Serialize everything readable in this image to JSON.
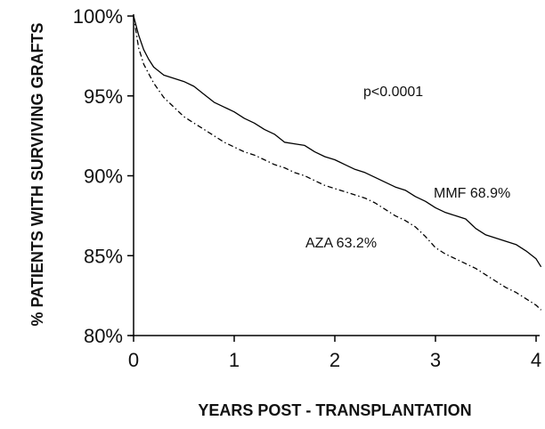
{
  "chart_data": {
    "type": "line",
    "xlabel": "YEARS POST - TRANSPLANTATION",
    "ylabel": "% PATIENTS WITH SURVIVING GRAFTS",
    "xlim": [
      0,
      4
    ],
    "ylim": [
      80,
      100
    ],
    "x_ticks": [
      "0",
      "1",
      "2",
      "3",
      "4"
    ],
    "y_ticks": [
      "80%",
      "85%",
      "90%",
      "95%",
      "100%"
    ],
    "grid": false,
    "legend": "none",
    "annotations": {
      "pvalue": "p<0.0001",
      "mmf_label": "MMF 68.9%",
      "aza_label": "AZA 63.2%"
    },
    "series": [
      {
        "name": "MMF",
        "line_style": "solid",
        "color": "#000000",
        "x": [
          0,
          0.05,
          0.1,
          0.15,
          0.2,
          0.3,
          0.4,
          0.5,
          0.6,
          0.7,
          0.8,
          0.9,
          1.0,
          1.1,
          1.2,
          1.3,
          1.4,
          1.5,
          1.6,
          1.7,
          1.8,
          1.9,
          2.0,
          2.1,
          2.2,
          2.3,
          2.4,
          2.5,
          2.6,
          2.7,
          2.8,
          2.9,
          3.0,
          3.1,
          3.2,
          3.3,
          3.4,
          3.5,
          3.6,
          3.7,
          3.8,
          3.9,
          4.0,
          4.05
        ],
        "y": [
          100,
          98.8,
          97.9,
          97.3,
          96.8,
          96.3,
          96.1,
          95.9,
          95.6,
          95.1,
          94.6,
          94.3,
          94.0,
          93.6,
          93.3,
          92.9,
          92.6,
          92.1,
          92.0,
          91.9,
          91.5,
          91.2,
          91.0,
          90.7,
          90.4,
          90.2,
          89.9,
          89.6,
          89.3,
          89.1,
          88.7,
          88.4,
          88.0,
          87.7,
          87.5,
          87.3,
          86.7,
          86.3,
          86.1,
          85.9,
          85.7,
          85.3,
          84.8,
          84.3
        ]
      },
      {
        "name": "AZA",
        "line_style": "dash-dot",
        "color": "#000000",
        "x": [
          0,
          0.05,
          0.1,
          0.15,
          0.2,
          0.3,
          0.4,
          0.5,
          0.6,
          0.7,
          0.8,
          0.9,
          1.0,
          1.1,
          1.2,
          1.3,
          1.4,
          1.5,
          1.6,
          1.7,
          1.8,
          1.9,
          2.0,
          2.1,
          2.2,
          2.3,
          2.4,
          2.5,
          2.6,
          2.7,
          2.8,
          2.9,
          3.0,
          3.1,
          3.2,
          3.3,
          3.4,
          3.5,
          3.6,
          3.7,
          3.8,
          3.9,
          4.0,
          4.05
        ],
        "y": [
          100,
          98.0,
          97.0,
          96.4,
          95.8,
          94.9,
          94.3,
          93.7,
          93.3,
          92.9,
          92.5,
          92.1,
          91.8,
          91.5,
          91.3,
          91.0,
          90.7,
          90.5,
          90.2,
          90.0,
          89.7,
          89.4,
          89.2,
          89.0,
          88.8,
          88.6,
          88.3,
          87.9,
          87.5,
          87.2,
          86.8,
          86.2,
          85.5,
          85.1,
          84.8,
          84.5,
          84.2,
          83.8,
          83.4,
          83.0,
          82.7,
          82.3,
          81.9,
          81.6
        ]
      }
    ]
  }
}
